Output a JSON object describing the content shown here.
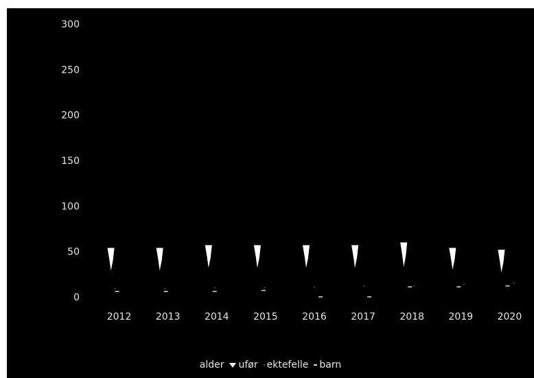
{
  "chart_data": {
    "type": "scatter",
    "title": "",
    "xlabel": "",
    "ylabel": "",
    "x": [
      "2012",
      "2013",
      "2014",
      "2015",
      "2016",
      "2017",
      "2018",
      "2019",
      "2020"
    ],
    "ylim": [
      0,
      300
    ],
    "yticks": [
      0,
      50,
      100,
      150,
      200,
      250,
      300
    ],
    "grid": false,
    "legend_position": "bottom",
    "background": "#000000",
    "series": [
      {
        "name": "alder",
        "marker": "none",
        "color": "#000000",
        "values": [
          null,
          null,
          null,
          null,
          null,
          null,
          null,
          null,
          null
        ]
      },
      {
        "name": "ufør",
        "marker": "triangle",
        "color": "#ffffff",
        "high": [
          54,
          54,
          57,
          57,
          57,
          57,
          60,
          54,
          52
        ],
        "low": [
          29,
          29,
          32,
          32,
          32,
          32,
          33,
          30,
          27
        ]
      },
      {
        "name": "ektefelle",
        "marker": "dot",
        "color": "#555555",
        "values": [
          9,
          9,
          10,
          10,
          11,
          12,
          12,
          14,
          15
        ]
      },
      {
        "name": "barn",
        "marker": "dash",
        "color": "#dddddd",
        "values": [
          6,
          6,
          6,
          7,
          0,
          0,
          11,
          11,
          12
        ]
      }
    ]
  }
}
